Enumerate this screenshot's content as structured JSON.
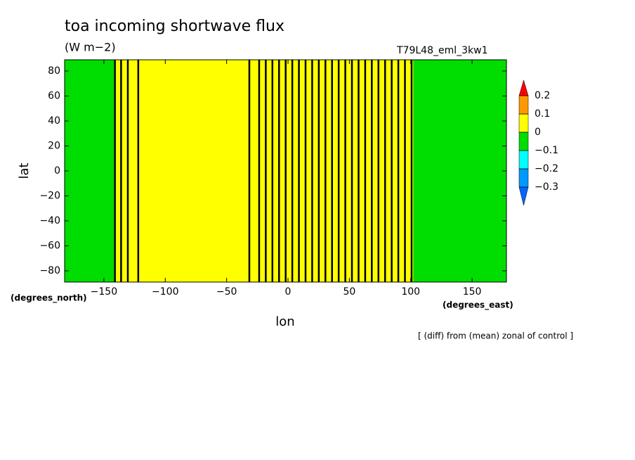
{
  "chart_data": {
    "type": "contour",
    "title": "toa incoming shortwave flux",
    "subtitle": "(W m−2)",
    "run_label": "T79L48_eml_3kw1",
    "xlabel": "lon",
    "ylabel": "lat",
    "y_units": "(degrees_north)",
    "x_units": "(degrees_east)",
    "note": "[ (diff) from (mean) zonal of control ]",
    "xlim": [
      -182,
      178
    ],
    "ylim": [
      -89,
      89
    ],
    "xticks": [
      {
        "value": -150,
        "label": "−150"
      },
      {
        "value": -100,
        "label": "−100"
      },
      {
        "value": -50,
        "label": "−50"
      },
      0,
      50,
      100,
      150
    ],
    "yticks": [
      {
        "value": -80,
        "label": "−80"
      },
      {
        "value": -60,
        "label": "−60"
      },
      {
        "value": -40,
        "label": "−40"
      },
      {
        "value": -20,
        "label": "−20"
      },
      0,
      20,
      40,
      60,
      80
    ],
    "colorbar": {
      "levels": [
        {
          "value": -0.3,
          "label": "−0.3"
        },
        {
          "value": -0.2,
          "label": "−0.2"
        },
        {
          "value": -0.1,
          "label": "−0.1"
        },
        0,
        0.1,
        0.2
      ],
      "colors": [
        "#0066ff",
        "#0099ff",
        "#00ffff",
        "#00dd00",
        "#ffff00",
        "#ff9900",
        "#ff0000"
      ]
    },
    "regions": [
      {
        "lon0": -182,
        "lon1": -141,
        "band": 3
      },
      {
        "lon0": -141,
        "lon1": 102,
        "band": 4
      },
      {
        "lon0": 102,
        "lon1": 178,
        "band": 3
      }
    ],
    "contour_lons": [
      -141,
      -136,
      -130.5,
      -122,
      -31.5,
      -23.5,
      -18.1,
      -12.7,
      -7.3,
      -1.9,
      3.5,
      8.9,
      14.3,
      19.7,
      25.1,
      30.5,
      35.9,
      41.3,
      46.7,
      52.1,
      57.5,
      62.9,
      68.3,
      73.7,
      79.1,
      84.5,
      89.9,
      95.3,
      100.7
    ]
  }
}
